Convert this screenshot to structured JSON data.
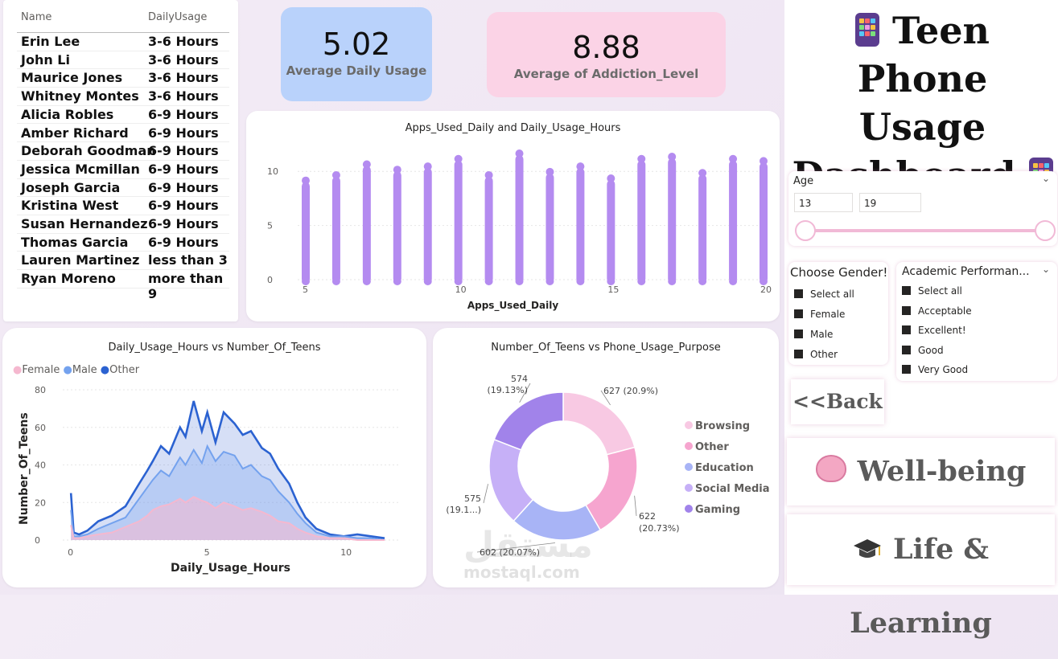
{
  "table": {
    "headers": [
      "Name",
      "DailyUsage"
    ],
    "rows": [
      [
        "Erin Lee",
        "3-6 Hours"
      ],
      [
        "John Li",
        "3-6 Hours"
      ],
      [
        "Maurice Jones",
        "3-6 Hours"
      ],
      [
        "Whitney Montes",
        "3-6 Hours"
      ],
      [
        "Alicia Robles",
        "6-9 Hours"
      ],
      [
        "Amber Richard",
        "6-9 Hours"
      ],
      [
        "Deborah Goodman",
        "6-9 Hours"
      ],
      [
        "Jessica Mcmillan",
        "6-9 Hours"
      ],
      [
        "Joseph Garcia",
        "6-9 Hours"
      ],
      [
        "Kristina West",
        "6-9 Hours"
      ],
      [
        "Susan Hernandez",
        "6-9 Hours"
      ],
      [
        "Thomas Garcia",
        "6-9 Hours"
      ],
      [
        "Lauren Martinez",
        "less than 3"
      ],
      [
        "Ryan Moreno",
        "more than 9"
      ]
    ]
  },
  "kpi1": {
    "value": "5.02",
    "label": "Average Daily Usage",
    "bg": "#b9d2fb"
  },
  "kpi2": {
    "value": "8.88",
    "label": "Average of Addiction_Level",
    "bg": "#fbd3e6"
  },
  "dashboard_title": {
    "line1": "Teen Phone",
    "line2": "Usage",
    "line3": "Dashboard",
    "icon": "mobile-phone-icon"
  },
  "age_slicer": {
    "label": "Age",
    "min": "13",
    "max": "19",
    "range": [
      13,
      19
    ]
  },
  "gender_slicer": {
    "title": "Choose Gender!",
    "options": [
      "Select all",
      "Female",
      "Male",
      "Other"
    ]
  },
  "academic_slicer": {
    "title": "Academic Performan...",
    "options": [
      "Select all",
      "Acceptable",
      "Excellent!",
      "Good",
      "Very Good"
    ]
  },
  "nav": {
    "back": "<<Back",
    "wellbeing": "Well-being",
    "wellbeing_icon": "brain-icon",
    "life": "Life & Learning",
    "life_icon": "graduation-cap-icon"
  },
  "watermark": {
    "ar": "مستقل",
    "en": "mostaql.com"
  },
  "colors": {
    "female": "#f5b8cf",
    "male": "#74a2ee",
    "other": "#2b62d1",
    "scatter": "#b48bf0"
  },
  "chart_data": [
    {
      "type": "scatter",
      "title": "Apps_Used_Daily and Daily_Usage_Hours",
      "xlabel": "Apps_Used_Daily",
      "ylabel": "",
      "xlim": [
        5,
        20
      ],
      "ylim": [
        0,
        11.5
      ],
      "xticks": [
        "5",
        "10",
        "15",
        "20"
      ],
      "yticks": [
        "0",
        "5",
        "10"
      ],
      "points_summary": [
        {
          "x": 5,
          "ymin": 0,
          "ymax": 9
        },
        {
          "x": 6,
          "ymin": 0,
          "ymax": 9.5
        },
        {
          "x": 7,
          "ymin": 0,
          "ymax": 10.5
        },
        {
          "x": 8,
          "ymin": 0,
          "ymax": 10
        },
        {
          "x": 9,
          "ymin": 0,
          "ymax": 10.3
        },
        {
          "x": 10,
          "ymin": 0,
          "ymax": 11
        },
        {
          "x": 11,
          "ymin": 0,
          "ymax": 9.5
        },
        {
          "x": 12,
          "ymin": 0,
          "ymax": 11.5
        },
        {
          "x": 13,
          "ymin": 0,
          "ymax": 9.8
        },
        {
          "x": 14,
          "ymin": 0,
          "ymax": 10.3
        },
        {
          "x": 15,
          "ymin": 0,
          "ymax": 9.2
        },
        {
          "x": 16,
          "ymin": 0,
          "ymax": 11
        },
        {
          "x": 17,
          "ymin": 0,
          "ymax": 11.2
        },
        {
          "x": 18,
          "ymin": 0,
          "ymax": 9.7
        },
        {
          "x": 19,
          "ymin": 0,
          "ymax": 11
        },
        {
          "x": 20,
          "ymin": 0,
          "ymax": 10.8
        }
      ]
    },
    {
      "type": "area",
      "title": "Daily_Usage_Hours vs Number_Of_Teens",
      "xlabel": "Daily_Usage_Hours",
      "ylabel": "Number_Of_Teens",
      "xlim": [
        -0.3,
        12
      ],
      "ylim": [
        0,
        80
      ],
      "xticks": [
        "0",
        "5",
        "10"
      ],
      "yticks": [
        "0",
        "20",
        "40",
        "60",
        "80"
      ],
      "legend_placement": "top-left",
      "x": [
        0,
        0.1,
        0.3,
        0.6,
        1,
        1.5,
        2,
        2.5,
        2.8,
        3,
        3.3,
        3.6,
        4,
        4.2,
        4.5,
        4.8,
        5,
        5.3,
        5.6,
        6,
        6.3,
        6.6,
        7,
        7.3,
        7.6,
        8,
        8.3,
        8.6,
        9,
        9.5,
        10,
        10.5,
        11,
        11.5
      ],
      "series": [
        {
          "name": "Female",
          "values": [
            8,
            1,
            1,
            2,
            3,
            4,
            7,
            10,
            13,
            16,
            18,
            19,
            22,
            20,
            23,
            21,
            20,
            17,
            20,
            18,
            16,
            17,
            15,
            13,
            10,
            9,
            6,
            4,
            2,
            1,
            1,
            0,
            0,
            0
          ]
        },
        {
          "name": "Male",
          "values": [
            16,
            2,
            2,
            3,
            6,
            9,
            12,
            22,
            28,
            32,
            37,
            34,
            44,
            40,
            48,
            41,
            50,
            42,
            47,
            45,
            38,
            40,
            34,
            32,
            26,
            20,
            14,
            9,
            4,
            2,
            2,
            1,
            1,
            0
          ]
        },
        {
          "name": "Other",
          "values": [
            25,
            4,
            3,
            5,
            10,
            13,
            18,
            30,
            37,
            42,
            50,
            46,
            60,
            55,
            74,
            58,
            68,
            52,
            68,
            62,
            56,
            58,
            49,
            46,
            38,
            30,
            20,
            12,
            6,
            3,
            2,
            3,
            2,
            1
          ]
        }
      ]
    },
    {
      "type": "pie",
      "title": "Number_Of_Teens vs Phone_Usage_Purpose",
      "legend_placement": "right",
      "categories": [
        "Browsing",
        "Other",
        "Education",
        "Social Media",
        "Gaming"
      ],
      "values": [
        627,
        622,
        602,
        575,
        574
      ],
      "labels": [
        "627 (20.9%)",
        "622 (20.73%)",
        "602 (20.07%)",
        "575 (19.1...)",
        "574 (19.13%)"
      ],
      "colors": [
        "#f8c9e3",
        "#f6a5cf",
        "#a8b4f6",
        "#c6b0f7",
        "#a183ea"
      ]
    }
  ]
}
